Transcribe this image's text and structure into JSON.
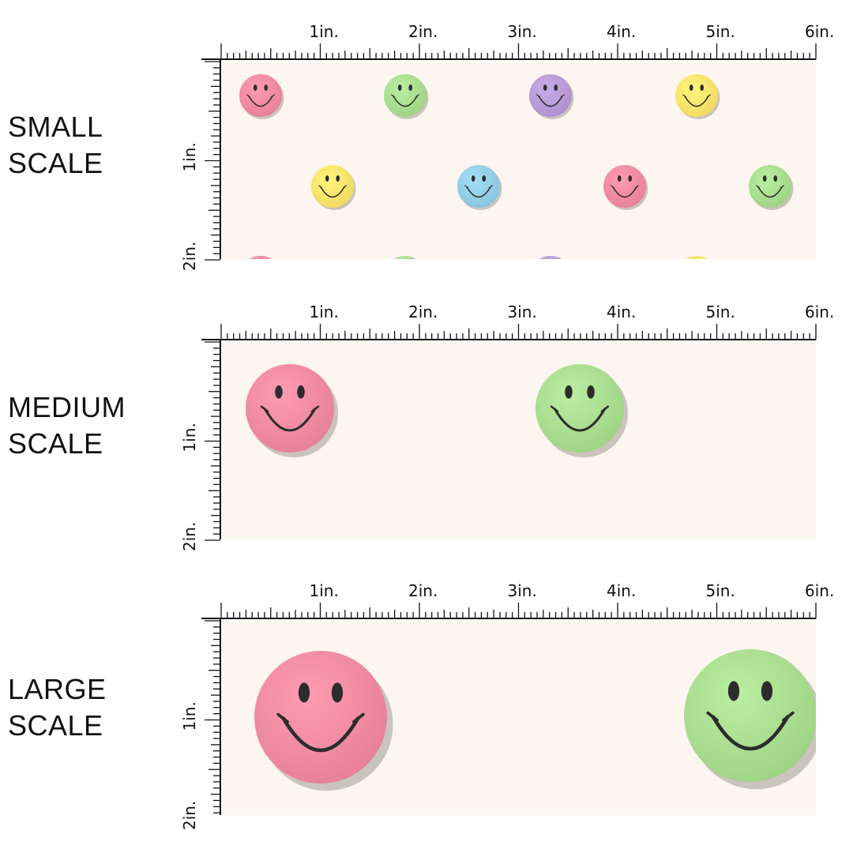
{
  "swatch_background": "#fdf6f0",
  "ruler_color": "#111111",
  "ruler_labels": [
    "1in.",
    "2in.",
    "3in.",
    "4in.",
    "5in.",
    "6in."
  ],
  "ruler_vertical_labels": [
    "1in.",
    "2in."
  ],
  "palette": {
    "pink": "#f08aa0",
    "green": "#a8dc8e",
    "purple": "#b89ad6",
    "yellow": "#fbe36a",
    "blue": "#92cde6"
  },
  "panels": [
    {
      "id": "small",
      "label_line1": "SMALL",
      "label_line2": "SCALE",
      "smileys": [
        {
          "color": "pink"
        },
        {
          "color": "green"
        },
        {
          "color": "purple"
        },
        {
          "color": "yellow"
        },
        {
          "color": "yellow"
        },
        {
          "color": "blue"
        },
        {
          "color": "pink"
        },
        {
          "color": "green"
        },
        {
          "color": "pink"
        },
        {
          "color": "green"
        },
        {
          "color": "purple"
        },
        {
          "color": "yellow"
        }
      ]
    },
    {
      "id": "medium",
      "label_line1": "MEDIUM",
      "label_line2": "SCALE",
      "smileys": [
        {
          "color": "pink"
        },
        {
          "color": "green"
        }
      ]
    },
    {
      "id": "large",
      "label_line1": "LARGE",
      "label_line2": "SCALE",
      "smileys": [
        {
          "color": "pink"
        },
        {
          "color": "green"
        }
      ]
    }
  ]
}
